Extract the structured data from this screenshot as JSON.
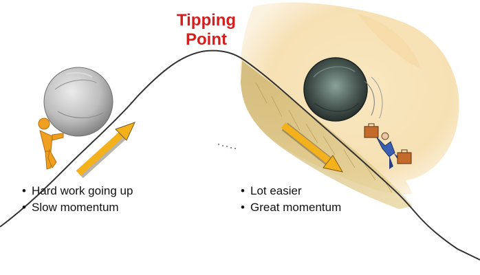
{
  "title": {
    "line1": "Tipping",
    "line2": "Point"
  },
  "left_panel": {
    "bullets": [
      "Hard work going up",
      "Slow momentum"
    ]
  },
  "right_panel": {
    "bullets": [
      "Lot easier",
      "Great momentum"
    ]
  },
  "colors": {
    "title": "#d21f1f",
    "arrow": "#f3b21b",
    "boulder_left": "#bdbdbd",
    "boulder_right": "#4b5a55",
    "figure": "#f0a020",
    "wash": "#f7e2b5"
  },
  "icons": [
    "boulder-icon",
    "pushing-figure-icon",
    "falling-businessman-icon",
    "briefcase-icon"
  ]
}
